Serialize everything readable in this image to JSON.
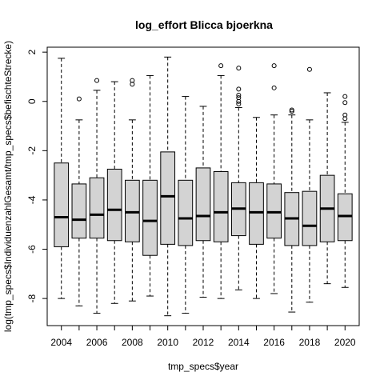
{
  "chart_data": {
    "type": "boxplot",
    "title": "log_effort Blicca bjoerkna",
    "xlabel": "tmp_specs$year",
    "ylabel": "log(tmp_specs$IndividuenzahlGesamt/tmp_specs$befischteStrecke)",
    "ylim": [
      -9.1,
      2.2
    ],
    "y_ticks": [
      -8,
      -6,
      -4,
      -2,
      0,
      2
    ],
    "x_tick_labels": [
      "2004",
      "2006",
      "2008",
      "2010",
      "2012",
      "2014",
      "2016",
      "2018",
      "2020"
    ],
    "box_fill": "#d3d3d3",
    "categories": [
      "2004",
      "2005",
      "2006",
      "2007",
      "2008",
      "2009",
      "2010",
      "2011",
      "2012",
      "2013",
      "2014",
      "2015",
      "2016",
      "2017",
      "2018",
      "2019",
      "2020"
    ],
    "boxes": [
      {
        "whisker_low": -8.0,
        "q1": -5.9,
        "median": -4.7,
        "q3": -2.5,
        "whisker_high": 1.75,
        "outliers": []
      },
      {
        "whisker_low": -8.3,
        "q1": -5.55,
        "median": -4.8,
        "q3": -3.35,
        "whisker_high": -0.75,
        "outliers": [
          0.1
        ]
      },
      {
        "whisker_low": -8.6,
        "q1": -5.55,
        "median": -4.6,
        "q3": -3.1,
        "whisker_high": 0.45,
        "outliers": [
          0.85
        ]
      },
      {
        "whisker_low": -8.2,
        "q1": -5.65,
        "median": -4.4,
        "q3": -2.75,
        "whisker_high": 0.8,
        "outliers": []
      },
      {
        "whisker_low": -8.1,
        "q1": -5.7,
        "median": -4.5,
        "q3": -3.2,
        "whisker_high": -0.75,
        "outliers": [
          0.7,
          0.85
        ]
      },
      {
        "whisker_low": -7.9,
        "q1": -6.25,
        "median": -4.85,
        "q3": -3.2,
        "whisker_high": 1.05,
        "outliers": []
      },
      {
        "whisker_low": -8.7,
        "q1": -5.8,
        "median": -3.85,
        "q3": -2.05,
        "whisker_high": 1.8,
        "outliers": []
      },
      {
        "whisker_low": -8.6,
        "q1": -5.85,
        "median": -4.75,
        "q3": -3.2,
        "whisker_high": 0.2,
        "outliers": []
      },
      {
        "whisker_low": -7.95,
        "q1": -5.65,
        "median": -4.65,
        "q3": -2.7,
        "whisker_high": -0.2,
        "outliers": []
      },
      {
        "whisker_low": -8.0,
        "q1": -5.7,
        "median": -4.5,
        "q3": -2.85,
        "whisker_high": 1.05,
        "outliers": [
          1.45
        ]
      },
      {
        "whisker_low": -7.65,
        "q1": -5.45,
        "median": -4.35,
        "q3": -3.3,
        "whisker_high": -0.25,
        "outliers": [
          1.35,
          0.5,
          0.25,
          0.15,
          0.0,
          -0.1
        ]
      },
      {
        "whisker_low": -8.0,
        "q1": -5.8,
        "median": -4.5,
        "q3": -3.3,
        "whisker_high": -0.65,
        "outliers": []
      },
      {
        "whisker_low": -7.8,
        "q1": -5.55,
        "median": -4.5,
        "q3": -3.35,
        "whisker_high": -0.55,
        "outliers": [
          1.45,
          0.55
        ]
      },
      {
        "whisker_low": -8.55,
        "q1": -5.85,
        "median": -4.75,
        "q3": -3.7,
        "whisker_high": -0.55,
        "outliers": [
          -0.35,
          -0.4
        ]
      },
      {
        "whisker_low": -8.15,
        "q1": -5.85,
        "median": -5.05,
        "q3": -3.65,
        "whisker_high": -0.75,
        "outliers": [
          1.3
        ]
      },
      {
        "whisker_low": -7.4,
        "q1": -5.7,
        "median": -4.35,
        "q3": -3.0,
        "whisker_high": 0.35,
        "outliers": []
      },
      {
        "whisker_low": -7.55,
        "q1": -5.65,
        "median": -4.65,
        "q3": -3.75,
        "whisker_high": -0.85,
        "outliers": [
          0.2,
          -0.05,
          -0.55,
          -0.7
        ]
      }
    ]
  }
}
